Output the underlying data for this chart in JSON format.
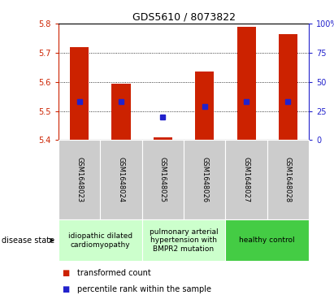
{
  "title": "GDS5610 / 8073822",
  "samples": [
    "GSM1648023",
    "GSM1648024",
    "GSM1648025",
    "GSM1648026",
    "GSM1648027",
    "GSM1648028"
  ],
  "transformed_counts": [
    5.72,
    5.595,
    5.41,
    5.635,
    5.79,
    5.765
  ],
  "percentile_ranks": [
    33,
    33,
    20,
    29,
    33,
    33
  ],
  "bar_bottom": 5.4,
  "ylim_left": [
    5.4,
    5.8
  ],
  "yticks_left": [
    5.4,
    5.5,
    5.6,
    5.7,
    5.8
  ],
  "ylim_right": [
    0,
    100
  ],
  "yticks_right": [
    0,
    25,
    50,
    75,
    100
  ],
  "yticklabels_right": [
    "0",
    "25",
    "50",
    "75",
    "100%"
  ],
  "bar_color": "#cc2200",
  "dot_color": "#2222cc",
  "bar_width": 0.45,
  "group_boundaries": [
    {
      "start": 0,
      "end": 2,
      "color": "#ccffcc",
      "label": "idiopathic dilated\ncardiomyopathy"
    },
    {
      "start": 2,
      "end": 4,
      "color": "#ccffcc",
      "label": "pulmonary arterial\nhypertension with\nBMPR2 mutation"
    },
    {
      "start": 4,
      "end": 6,
      "color": "#44cc44",
      "label": "healthy control"
    }
  ],
  "legend_items": [
    {
      "label": "transformed count",
      "color": "#cc2200"
    },
    {
      "label": "percentile rank within the sample",
      "color": "#2222cc"
    }
  ],
  "left_tick_color": "#cc2200",
  "right_tick_color": "#2222cc",
  "disease_state_label": "disease state",
  "sample_bg_color": "#cccccc",
  "title_fontsize": 9,
  "tick_fontsize": 7,
  "sample_fontsize": 6,
  "legend_fontsize": 7,
  "disease_fontsize": 6.5
}
